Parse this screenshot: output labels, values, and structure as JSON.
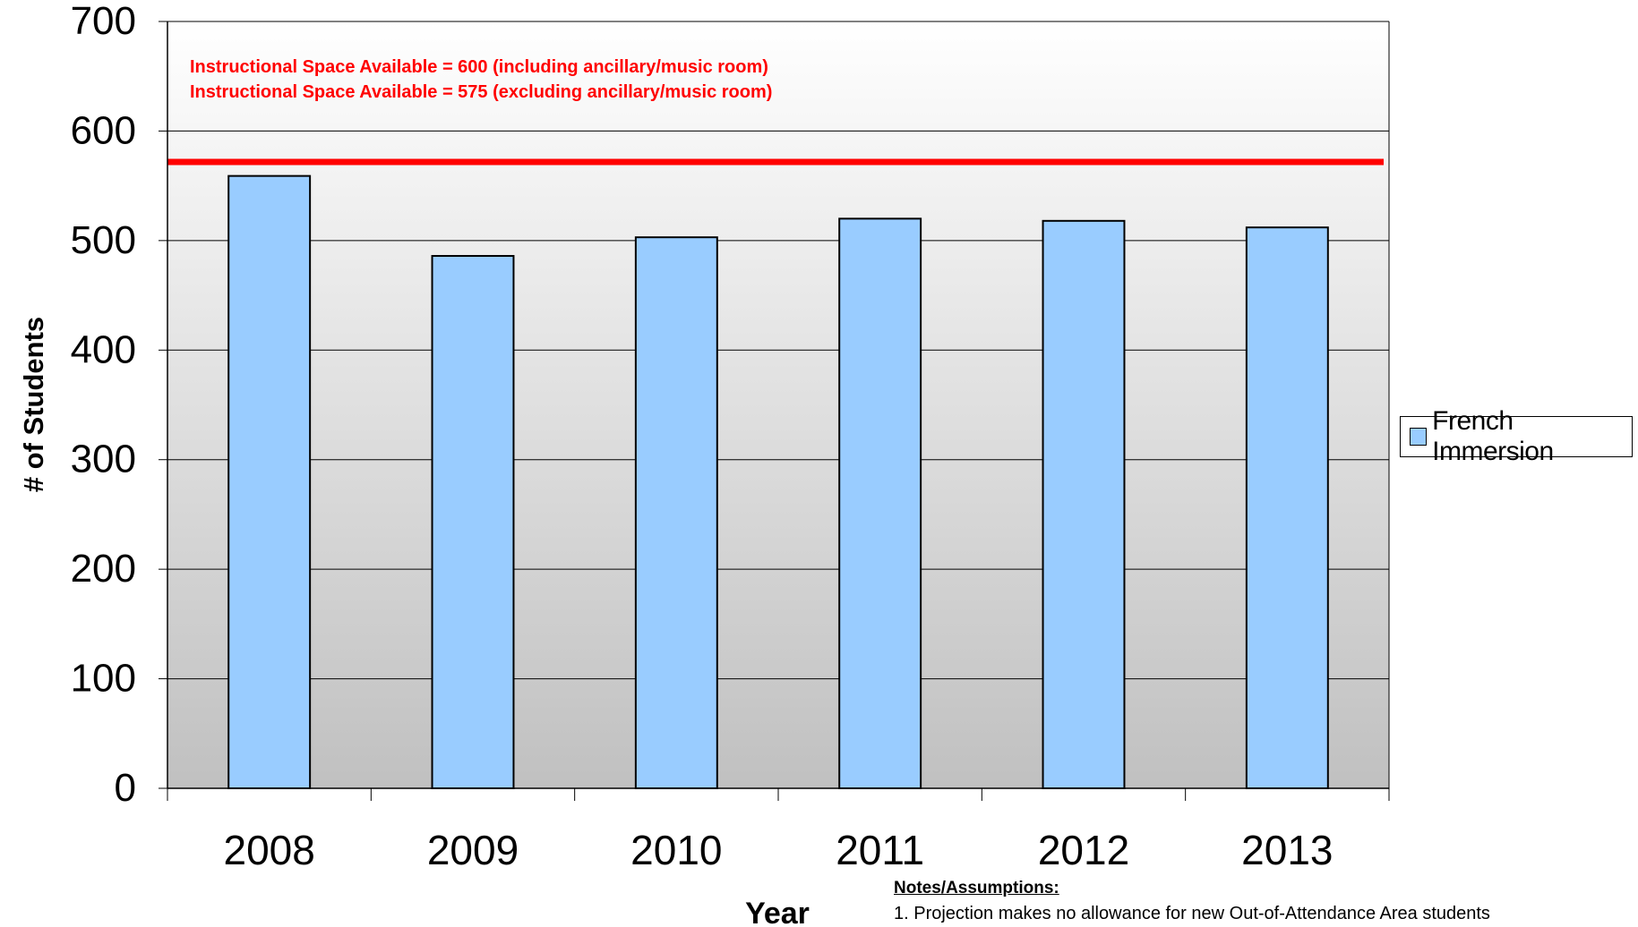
{
  "chart_data": {
    "type": "bar",
    "title": "",
    "xlabel": "Year",
    "ylabel": "# of Students",
    "categories": [
      "2008",
      "2009",
      "2010",
      "2011",
      "2012",
      "2013"
    ],
    "series": [
      {
        "name": "French Immersion",
        "values": [
          559,
          486,
          503,
          520,
          518,
          512
        ],
        "color": "#99ccff"
      }
    ],
    "ylim": [
      0,
      700
    ],
    "yticks": [
      0,
      100,
      200,
      300,
      400,
      500,
      600,
      700
    ],
    "grid": true,
    "legend_position": "right",
    "reference_line": {
      "value": 575,
      "color": "#ff0000"
    },
    "annotations": [
      "Instructional Space Available = 600 (including ancillary/music room)",
      "Instructional Space Available = 575 (excluding ancillary/music room)"
    ],
    "annotation_color": "#ff0000",
    "background_gradient": [
      "#ffffff",
      "#c0c0c0"
    ]
  },
  "notes": {
    "title": "Notes/Assumptions:",
    "items": [
      "1.  Projection makes no allowance for new Out-of-Attendance Area students"
    ]
  }
}
